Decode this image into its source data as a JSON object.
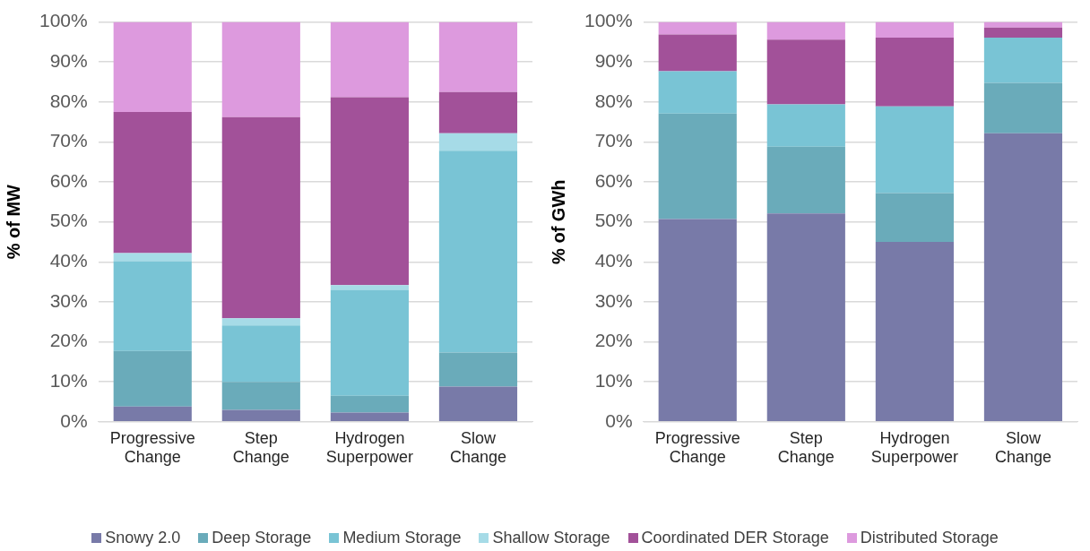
{
  "chart_data": [
    {
      "type": "bar",
      "stacked": true,
      "ylabel": "% of MW",
      "categories": [
        "Progressive Change",
        "Step Change",
        "Hydrogen Superpower",
        "Slow Change"
      ],
      "series": [
        {
          "name": "Snowy 2.0",
          "color": "#787aa8",
          "values": [
            3.8,
            3.0,
            2.3,
            8.8
          ]
        },
        {
          "name": "Deep Storage",
          "color": "#6aabba",
          "values": [
            13.9,
            7.0,
            4.2,
            8.5
          ]
        },
        {
          "name": "Medium Storage",
          "color": "#79c4d5",
          "values": [
            22.5,
            14.1,
            26.5,
            50.5
          ]
        },
        {
          "name": "Shallow Storage",
          "color": "#a6dbe7",
          "values": [
            2.0,
            1.8,
            1.2,
            4.4
          ]
        },
        {
          "name": "Coordinated DER Storage",
          "color": "#a25199",
          "values": [
            35.3,
            50.3,
            47.0,
            10.3
          ]
        },
        {
          "name": "Distributed Storage",
          "color": "#dd9ade",
          "values": [
            22.5,
            23.8,
            18.8,
            17.5
          ]
        }
      ],
      "ylim": [
        0,
        100
      ],
      "yticks": [
        {
          "value": 0,
          "label": "0%"
        },
        {
          "value": 10,
          "label": "10%"
        },
        {
          "value": 20,
          "label": "20%"
        },
        {
          "value": 30,
          "label": "30%"
        },
        {
          "value": 40,
          "label": "40%"
        },
        {
          "value": 50,
          "label": "50%"
        },
        {
          "value": 60,
          "label": "60%"
        },
        {
          "value": 70,
          "label": "70%"
        },
        {
          "value": 80,
          "label": "80%"
        },
        {
          "value": 90,
          "label": "90%"
        },
        {
          "value": 100,
          "label": "100%"
        }
      ],
      "grid": "y",
      "legend": "bottom"
    },
    {
      "type": "bar",
      "stacked": true,
      "ylabel": "% of GWh",
      "categories": [
        "Progressive Change",
        "Step Change",
        "Hydrogen Superpower",
        "Slow Change"
      ],
      "series": [
        {
          "name": "Snowy 2.0",
          "color": "#787aa8",
          "values": [
            50.7,
            52.1,
            45.0,
            72.2
          ]
        },
        {
          "name": "Deep Storage",
          "color": "#6aabba",
          "values": [
            26.4,
            16.7,
            12.2,
            12.6
          ]
        },
        {
          "name": "Medium Storage",
          "color": "#79c4d5",
          "values": [
            10.6,
            10.6,
            21.7,
            11.3
          ]
        },
        {
          "name": "Shallow Storage",
          "color": "#a6dbe7",
          "values": [
            0,
            0,
            0,
            0
          ]
        },
        {
          "name": "Coordinated DER Storage",
          "color": "#a25199",
          "values": [
            9.2,
            16.2,
            17.2,
            2.5
          ]
        },
        {
          "name": "Distributed Storage",
          "color": "#dd9ade",
          "values": [
            3.1,
            4.4,
            3.9,
            1.4
          ]
        }
      ],
      "ylim": [
        0,
        100
      ],
      "yticks": [
        {
          "value": 0,
          "label": "0%"
        },
        {
          "value": 10,
          "label": "10%"
        },
        {
          "value": 20,
          "label": "20%"
        },
        {
          "value": 30,
          "label": "30%"
        },
        {
          "value": 40,
          "label": "40%"
        },
        {
          "value": 50,
          "label": "50%"
        },
        {
          "value": 60,
          "label": "60%"
        },
        {
          "value": 70,
          "label": "70%"
        },
        {
          "value": 80,
          "label": "80%"
        },
        {
          "value": 90,
          "label": "90%"
        },
        {
          "value": 100,
          "label": "100%"
        }
      ],
      "grid": "y",
      "legend": "bottom"
    }
  ]
}
